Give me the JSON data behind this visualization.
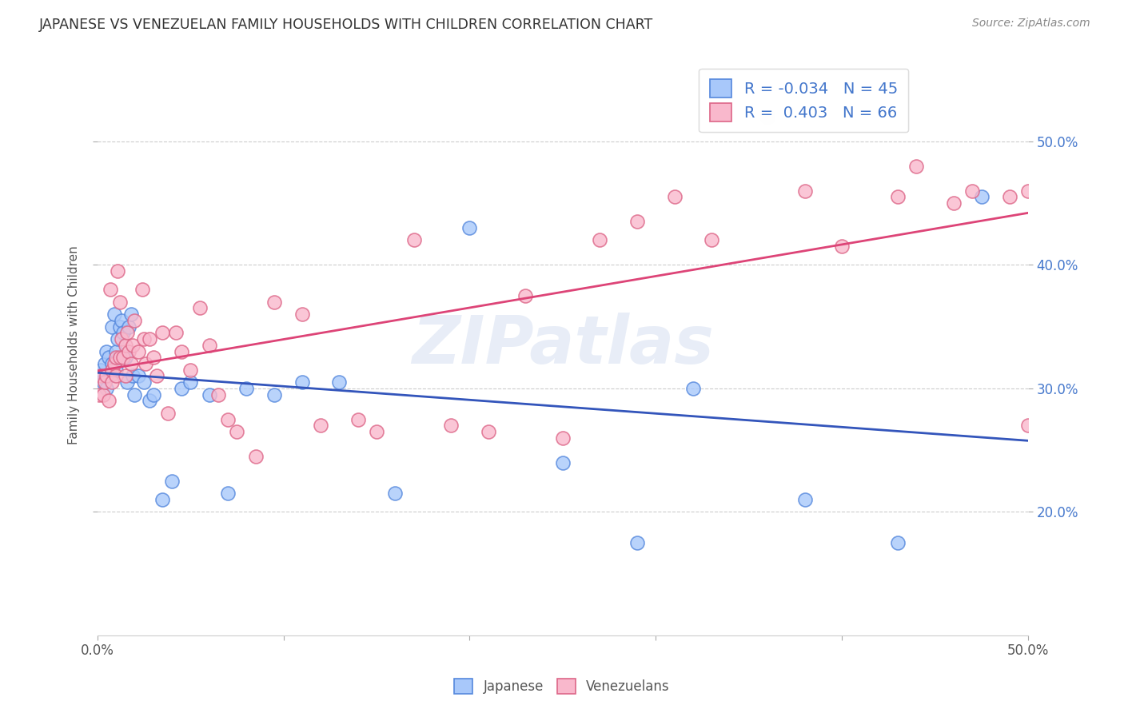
{
  "title": "JAPANESE VS VENEZUELAN FAMILY HOUSEHOLDS WITH CHILDREN CORRELATION CHART",
  "source": "Source: ZipAtlas.com",
  "ylabel": "Family Households with Children",
  "xlim": [
    0.0,
    0.5
  ],
  "ylim": [
    0.1,
    0.57
  ],
  "yticks_right": [
    0.2,
    0.3,
    0.4,
    0.5
  ],
  "legend_r_japanese": "-0.034",
  "legend_n_japanese": "45",
  "legend_r_venezuelan": "0.403",
  "legend_n_venezuelan": "66",
  "japanese_color": "#a8c8fa",
  "venezuelan_color": "#f9b8cc",
  "japanese_edge_color": "#5588dd",
  "venezuelan_edge_color": "#dd6688",
  "japanese_line_color": "#3355bb",
  "venezuelan_line_color": "#dd4477",
  "watermark": "ZIPatlas",
  "japanese_x": [
    0.001,
    0.002,
    0.003,
    0.004,
    0.005,
    0.005,
    0.006,
    0.007,
    0.008,
    0.008,
    0.009,
    0.01,
    0.01,
    0.011,
    0.012,
    0.013,
    0.014,
    0.015,
    0.016,
    0.017,
    0.018,
    0.019,
    0.02,
    0.022,
    0.025,
    0.028,
    0.03,
    0.035,
    0.04,
    0.045,
    0.05,
    0.06,
    0.07,
    0.08,
    0.095,
    0.11,
    0.13,
    0.16,
    0.2,
    0.25,
    0.29,
    0.32,
    0.38,
    0.43,
    0.475
  ],
  "japanese_y": [
    0.31,
    0.315,
    0.305,
    0.32,
    0.3,
    0.33,
    0.325,
    0.31,
    0.32,
    0.35,
    0.36,
    0.315,
    0.33,
    0.34,
    0.35,
    0.355,
    0.345,
    0.325,
    0.305,
    0.35,
    0.36,
    0.31,
    0.295,
    0.31,
    0.305,
    0.29,
    0.295,
    0.21,
    0.225,
    0.3,
    0.305,
    0.295,
    0.215,
    0.3,
    0.295,
    0.305,
    0.305,
    0.215,
    0.43,
    0.24,
    0.175,
    0.3,
    0.21,
    0.175,
    0.455
  ],
  "venezuelan_x": [
    0.001,
    0.002,
    0.003,
    0.004,
    0.005,
    0.006,
    0.007,
    0.008,
    0.008,
    0.009,
    0.01,
    0.01,
    0.011,
    0.012,
    0.012,
    0.013,
    0.014,
    0.015,
    0.015,
    0.016,
    0.017,
    0.018,
    0.019,
    0.02,
    0.022,
    0.024,
    0.025,
    0.026,
    0.028,
    0.03,
    0.032,
    0.035,
    0.038,
    0.042,
    0.045,
    0.05,
    0.055,
    0.06,
    0.065,
    0.07,
    0.075,
    0.085,
    0.095,
    0.11,
    0.12,
    0.14,
    0.15,
    0.17,
    0.19,
    0.21,
    0.23,
    0.25,
    0.27,
    0.29,
    0.31,
    0.33,
    0.36,
    0.38,
    0.4,
    0.43,
    0.44,
    0.46,
    0.47,
    0.49,
    0.5,
    0.5
  ],
  "venezuelan_y": [
    0.295,
    0.31,
    0.295,
    0.305,
    0.31,
    0.29,
    0.38,
    0.315,
    0.305,
    0.32,
    0.31,
    0.325,
    0.395,
    0.37,
    0.325,
    0.34,
    0.325,
    0.335,
    0.31,
    0.345,
    0.33,
    0.32,
    0.335,
    0.355,
    0.33,
    0.38,
    0.34,
    0.32,
    0.34,
    0.325,
    0.31,
    0.345,
    0.28,
    0.345,
    0.33,
    0.315,
    0.365,
    0.335,
    0.295,
    0.275,
    0.265,
    0.245,
    0.37,
    0.36,
    0.27,
    0.275,
    0.265,
    0.42,
    0.27,
    0.265,
    0.375,
    0.26,
    0.42,
    0.435,
    0.455,
    0.42,
    0.52,
    0.46,
    0.415,
    0.455,
    0.48,
    0.45,
    0.46,
    0.455,
    0.27,
    0.46
  ]
}
